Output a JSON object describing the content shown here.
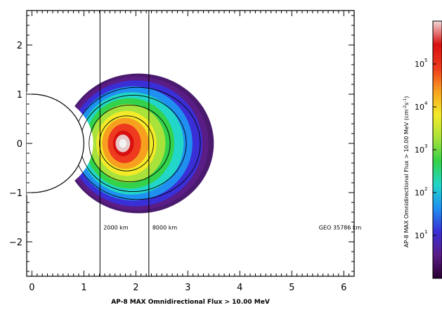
{
  "chart_data": {
    "type": "heatmap",
    "title": "AP-8 MAX Omnidirectional Flux > 10.00 MeV",
    "xlabel": "AP-8 MAX Omnidirectional Flux > 10.00 MeV",
    "ylabel": "",
    "xlim": [
      -0.1,
      6.2
    ],
    "ylim": [
      -2.7,
      2.7
    ],
    "xticks": [
      0,
      1,
      2,
      3,
      4,
      5,
      6
    ],
    "yticks": [
      -2,
      -1,
      0,
      1,
      2
    ],
    "earth_radius": 1,
    "reference_lines": [
      {
        "x": 1.31,
        "label": "2000 km"
      },
      {
        "x": 2.25,
        "label": "8000 km"
      },
      {
        "x": 6.6,
        "label": "GEO 35786 km"
      }
    ],
    "contour_levels": [
      10,
      100,
      1000,
      10000,
      100000
    ],
    "colorbar": {
      "title": "AP-8 MAX Omnidirectional Flux > 10.00 MeV (cm",
      "title_exp1": "-2",
      "title_mid": "s",
      "title_exp2": "-1",
      "title_end": ")",
      "scale": "log",
      "range": [
        1,
        1000000
      ],
      "tick_base": "10",
      "ticks": [
        {
          "value": 10,
          "exp": "1"
        },
        {
          "value": 100,
          "exp": "2"
        },
        {
          "value": 1000,
          "exp": "3"
        },
        {
          "value": 10000,
          "exp": "4"
        },
        {
          "value": 100000,
          "exp": "5"
        }
      ],
      "colors": [
        "#2b0033",
        "#5a1c85",
        "#3a2fd6",
        "#1f8ff0",
        "#22d6c8",
        "#33d24a",
        "#a8e23a",
        "#f3ea2a",
        "#f7a020",
        "#ee3a1e",
        "#d81010",
        "#f0d8d8"
      ]
    },
    "peak_location": {
      "x": 1.75,
      "y": 0
    }
  }
}
